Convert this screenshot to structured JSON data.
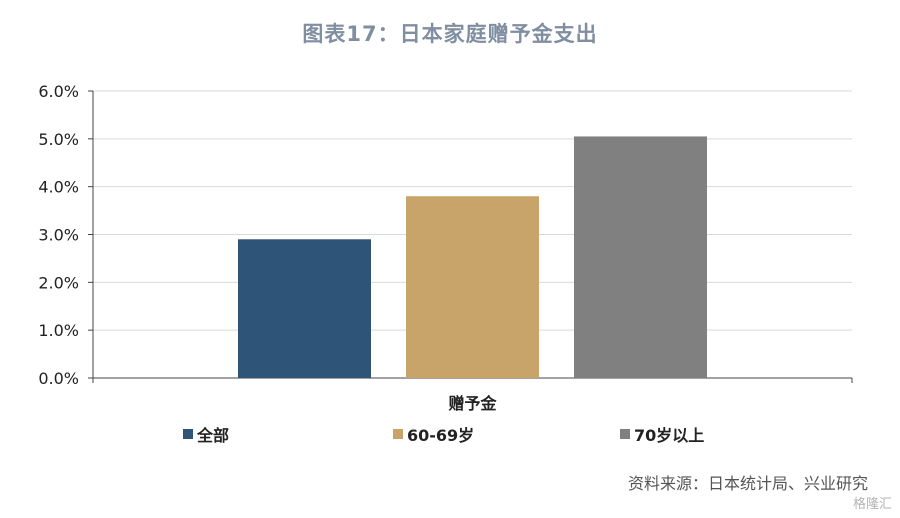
{
  "title": "图表17：日本家庭赠予金支出",
  "source": "资料来源：日本统计局、兴业研究",
  "watermark": "格隆汇",
  "chart_data": {
    "type": "bar",
    "title": "图表17：日本家庭赠予金支出",
    "categories": [
      "赠予金"
    ],
    "series": [
      {
        "name": "全部",
        "values": [
          2.9
        ],
        "color": "#2e5477"
      },
      {
        "name": "60-69岁",
        "values": [
          3.8
        ],
        "color": "#c8a36a"
      },
      {
        "name": "70岁以上",
        "values": [
          5.05
        ],
        "color": "#808080"
      }
    ],
    "ylim": [
      0,
      6
    ],
    "yticks": [
      "0.0%",
      "1.0%",
      "2.0%",
      "3.0%",
      "4.0%",
      "5.0%",
      "6.0%"
    ],
    "grid": true,
    "legend_position": "bottom"
  }
}
